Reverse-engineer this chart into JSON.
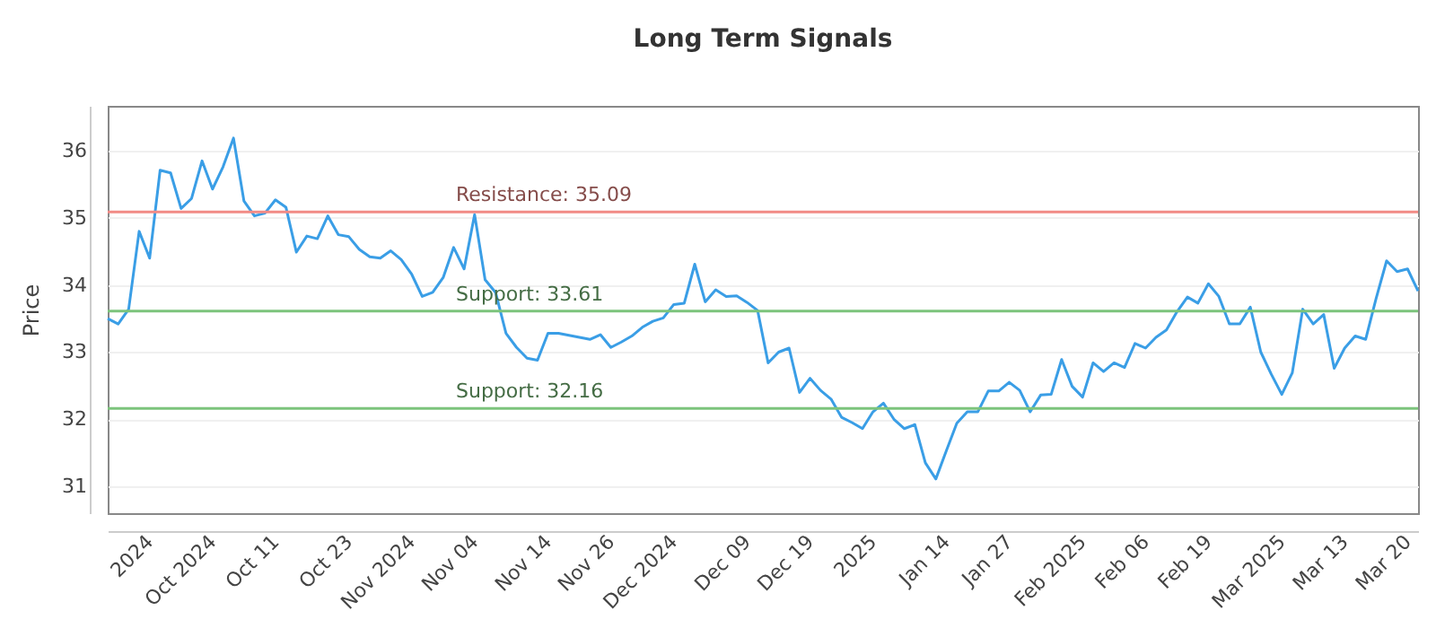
{
  "chart_data": {
    "type": "line",
    "title": "Long Term Signals",
    "ylabel": "Price",
    "categories": [
      null,
      null,
      null,
      null,
      "2024",
      null,
      null,
      null,
      null,
      null,
      "Oct 2024",
      null,
      null,
      null,
      null,
      null,
      "Oct 11",
      null,
      null,
      null,
      null,
      null,
      null,
      "Oct 23",
      null,
      null,
      null,
      null,
      null,
      "Nov 2024",
      null,
      null,
      null,
      null,
      null,
      "Nov 04",
      null,
      null,
      null,
      null,
      null,
      null,
      "Nov 14",
      null,
      null,
      null,
      null,
      null,
      "Nov 26",
      null,
      null,
      null,
      null,
      null,
      "Dec 2024",
      null,
      null,
      null,
      null,
      null,
      null,
      "Dec 09",
      null,
      null,
      null,
      null,
      null,
      "Dec 19",
      null,
      null,
      null,
      null,
      null,
      "2025",
      null,
      null,
      null,
      null,
      null,
      null,
      "Jan 14",
      null,
      null,
      null,
      null,
      null,
      "Jan 27",
      null,
      null,
      null,
      null,
      null,
      null,
      "Feb 2025",
      null,
      null,
      null,
      null,
      null,
      "Feb 06",
      null,
      null,
      null,
      null,
      null,
      "Feb 19",
      null,
      null,
      null,
      null,
      null,
      null,
      "Mar 2025",
      null,
      null,
      null,
      null,
      null,
      "Mar 13",
      null,
      null,
      null,
      null,
      null,
      "Mar 20",
      null
    ],
    "series": [
      {
        "color": "#3a9ee6",
        "values": [
          33.5,
          33.42,
          33.64,
          34.8,
          34.4,
          35.71,
          35.67,
          35.14,
          35.29,
          35.85,
          35.43,
          35.76,
          36.19,
          35.25,
          35.03,
          35.07,
          35.27,
          35.16,
          34.49,
          34.73,
          34.69,
          35.03,
          34.75,
          34.72,
          34.53,
          34.42,
          34.4,
          34.51,
          34.38,
          34.16,
          33.83,
          33.89,
          34.11,
          34.56,
          34.24,
          35.05,
          34.08,
          33.89,
          33.28,
          33.07,
          32.91,
          32.88,
          33.28,
          33.28,
          33.25,
          33.22,
          33.19,
          33.26,
          33.07,
          33.15,
          33.24,
          33.37,
          33.46,
          33.51,
          33.71,
          33.73,
          34.31,
          33.75,
          33.93,
          33.83,
          33.84,
          33.74,
          33.62,
          32.84,
          33.0,
          33.06,
          32.4,
          32.61,
          32.43,
          32.3,
          32.03,
          31.95,
          31.86,
          32.11,
          32.24,
          32.0,
          31.86,
          31.92,
          31.35,
          31.11,
          31.53,
          31.94,
          32.11,
          32.11,
          32.42,
          32.42,
          32.55,
          32.43,
          32.11,
          32.36,
          32.37,
          32.89,
          32.49,
          32.33,
          32.84,
          32.71,
          32.84,
          32.77,
          33.13,
          33.06,
          33.22,
          33.33,
          33.6,
          33.82,
          33.73,
          34.02,
          33.83,
          33.42,
          33.42,
          33.67,
          33.0,
          32.67,
          32.37,
          32.69,
          33.64,
          33.42,
          33.56,
          32.76,
          33.06,
          33.24,
          33.19,
          33.8,
          34.36,
          34.2,
          34.24,
          33.91
        ]
      }
    ],
    "ylim": [
      30.6,
      36.67
    ],
    "yticks": [
      31,
      32,
      33,
      34,
      35,
      36
    ],
    "grid": "y",
    "ref_lines": [
      {
        "axis": "y",
        "value": 35.09,
        "label": "Resistance: 35.09",
        "color": "#f28b86"
      },
      {
        "axis": "y",
        "value": 33.61,
        "label": "Support: 33.61",
        "color": "#7cc47c"
      },
      {
        "axis": "y",
        "value": 32.16,
        "label": "Support: 32.16",
        "color": "#7cc47c"
      }
    ]
  }
}
